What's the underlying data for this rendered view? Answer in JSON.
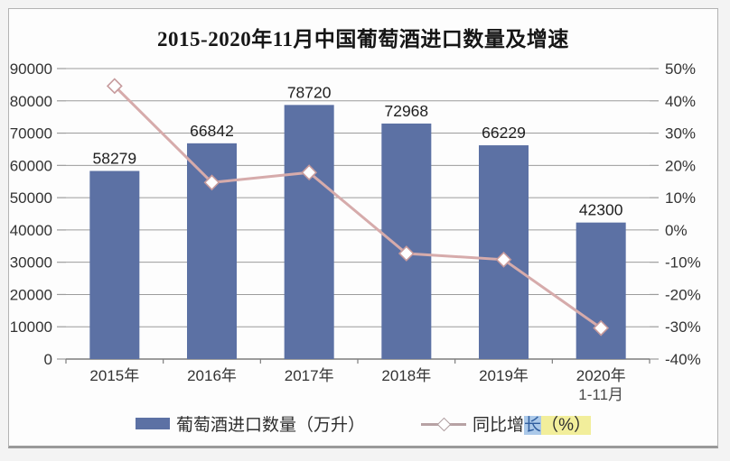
{
  "chart_data": {
    "type": "bar",
    "title": "2015-2020年11月中国葡萄酒进口数量及增速",
    "categories": [
      "2015年",
      "2016年",
      "2017年",
      "2018年",
      "2019年",
      "2020年"
    ],
    "category_sublabels": [
      "",
      "",
      "",
      "",
      "",
      "1-11月"
    ],
    "series": [
      {
        "name": "葡萄酒进口数量（万升）",
        "type": "bar",
        "axis": "left",
        "values": [
          58279,
          66842,
          78720,
          72968,
          66229,
          42300
        ],
        "data_labels": [
          "58279",
          "66842",
          "78720",
          "72968",
          "66229",
          "42300"
        ],
        "color": "#5c71a4"
      },
      {
        "name": "同比增长（%）",
        "type": "line",
        "axis": "right",
        "values": [
          44.6,
          14.7,
          17.8,
          -7.3,
          -9.2,
          -30.4
        ],
        "color": "#d6abab",
        "marker": "diamond",
        "marker_fill": "#ffffff",
        "marker_stroke": "#c69a9c"
      }
    ],
    "left_axis": {
      "min": 0,
      "max": 90000,
      "step": 10000,
      "tick_labels": [
        "90000",
        "80000",
        "70000",
        "60000",
        "50000",
        "40000",
        "30000",
        "20000",
        "10000",
        "0"
      ]
    },
    "right_axis": {
      "min": -40,
      "max": 50,
      "step": 10,
      "tick_labels": [
        "50%",
        "40%",
        "30%",
        "20%",
        "10%",
        "0%",
        "-10%",
        "-20%",
        "-30%",
        "-40%"
      ]
    },
    "grid": true,
    "legend_position": "bottom",
    "colors": {
      "gridline": "#9c9c9c",
      "axis_line": "#7d7d7d",
      "tick_text": "#333333",
      "value_label_text": "#1f1f1f",
      "background": "#fdfdfd"
    }
  },
  "legend": {
    "bar_label": "葡萄酒进口数量（万升）",
    "line_label_prefix": "同比增",
    "line_label_highlight": "长",
    "line_label_suffix": "（%）"
  }
}
